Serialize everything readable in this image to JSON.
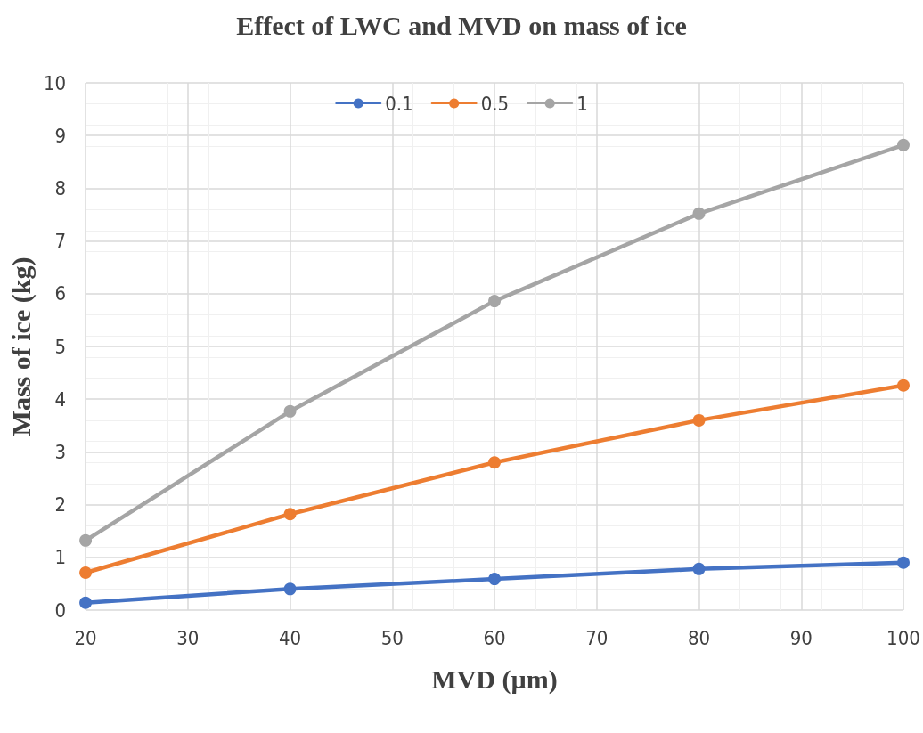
{
  "chart_data": {
    "type": "line",
    "title": "Effect of LWC and MVD on mass of ice",
    "xlabel": "MVD (µm)",
    "ylabel": "Mass of ice (kg)",
    "x": [
      20,
      40,
      60,
      80,
      100
    ],
    "series": [
      {
        "name": "0.1",
        "color": "#4472c4",
        "values": [
          0.14,
          0.4,
          0.59,
          0.78,
          0.9
        ]
      },
      {
        "name": "0.5",
        "color": "#ed7d31",
        "values": [
          0.71,
          1.82,
          2.8,
          3.6,
          4.26
        ]
      },
      {
        "name": "1",
        "color": "#a5a5a5",
        "values": [
          1.32,
          3.77,
          5.86,
          7.52,
          8.82
        ]
      }
    ],
    "xlim": [
      20,
      100
    ],
    "xticks": [
      20,
      30,
      40,
      50,
      60,
      70,
      80,
      90,
      100
    ],
    "ylim": [
      0,
      10
    ],
    "yticks": [
      0,
      1,
      2,
      3,
      4,
      5,
      6,
      7,
      8,
      9,
      10
    ],
    "grid": true,
    "legend": "top",
    "marker": "circle",
    "line_style": "solid"
  }
}
